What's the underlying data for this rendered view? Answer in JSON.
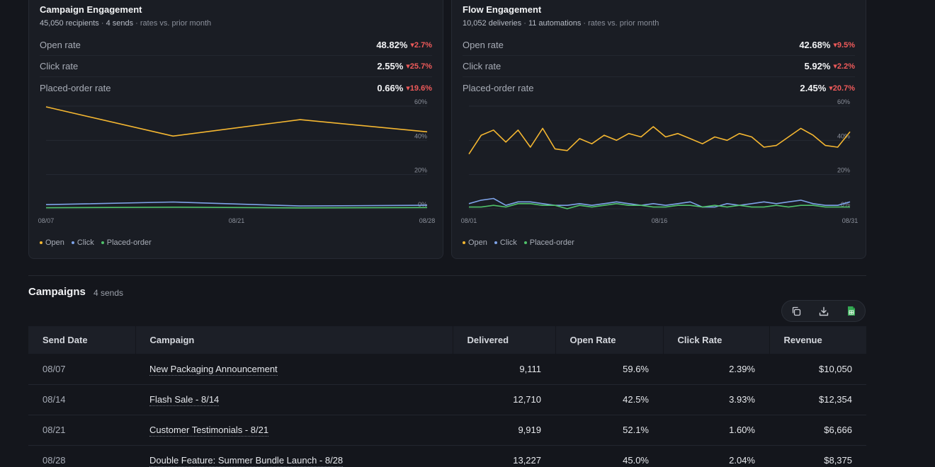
{
  "campaign_card": {
    "title": "Campaign Engagement",
    "recipients": "45,050 recipients",
    "sends": "4 sends",
    "note": "rates vs. prior month",
    "metrics": [
      {
        "label": "Open rate",
        "value": "48.82%",
        "delta": "▾2.7%"
      },
      {
        "label": "Click rate",
        "value": "2.55%",
        "delta": "▾25.7%"
      },
      {
        "label": "Placed-order rate",
        "value": "0.66%",
        "delta": "▾19.6%"
      }
    ]
  },
  "flow_card": {
    "title": "Flow Engagement",
    "deliveries": "10,052 deliveries",
    "automations": "11 automations",
    "note": "rates vs. prior month",
    "metrics": [
      {
        "label": "Open rate",
        "value": "42.68%",
        "delta": "▾9.5%"
      },
      {
        "label": "Click rate",
        "value": "5.92%",
        "delta": "▾2.2%"
      },
      {
        "label": "Placed-order rate",
        "value": "2.45%",
        "delta": "▾20.7%"
      }
    ]
  },
  "legend": {
    "open": "Open",
    "click": "Click",
    "placed": "Placed-order"
  },
  "colors": {
    "open": "#f5b731",
    "click": "#7ea3e8",
    "placed": "#4fc26a",
    "negative": "#ef5a5a"
  },
  "chart_data": [
    {
      "type": "line",
      "x_ticks": [
        "08/07",
        "08/21",
        "08/28"
      ],
      "y_ticks": [
        "60%",
        "40%",
        "20%",
        "0%"
      ],
      "ylim": [
        0,
        60
      ],
      "series": [
        {
          "name": "Open",
          "values": [
            59.6,
            42.5,
            52.1,
            45.0
          ]
        },
        {
          "name": "Click",
          "values": [
            2.39,
            3.93,
            1.6,
            2.04
          ]
        },
        {
          "name": "Placed-order",
          "values": [
            0.6,
            0.9,
            0.5,
            0.7
          ]
        }
      ]
    },
    {
      "type": "line",
      "x_ticks": [
        "08/01",
        "08/16",
        "08/31"
      ],
      "y_ticks": [
        "60%",
        "40%",
        "20%",
        "0%"
      ],
      "ylim": [
        0,
        60
      ],
      "series": [
        {
          "name": "Open",
          "values": [
            32,
            43,
            46,
            39,
            46,
            36,
            47,
            35,
            34,
            41,
            38,
            43,
            40,
            44,
            42,
            48,
            42,
            44,
            41,
            38,
            42,
            40,
            44,
            42,
            36,
            37,
            42,
            47,
            43,
            37,
            36,
            45
          ]
        },
        {
          "name": "Click",
          "values": [
            3,
            5,
            6,
            2,
            4,
            4,
            3,
            2,
            2,
            3,
            2,
            3,
            4,
            3,
            2,
            3,
            2,
            3,
            4,
            1,
            1,
            3,
            2,
            3,
            4,
            3,
            4,
            5,
            3,
            2,
            2,
            4
          ]
        },
        {
          "name": "Placed-order",
          "values": [
            1,
            1,
            2,
            1,
            3,
            3,
            2,
            2,
            0,
            2,
            1,
            2,
            3,
            2,
            2,
            1,
            1,
            2,
            2,
            1,
            2,
            1,
            2,
            1,
            1,
            2,
            1,
            2,
            2,
            1,
            1,
            1
          ]
        }
      ]
    }
  ],
  "campaigns": {
    "title": "Campaigns",
    "count": "4 sends",
    "toolbar_icons": [
      "copy-icon",
      "download-icon",
      "spreadsheet-icon"
    ],
    "columns": [
      "Send Date",
      "Campaign",
      "Delivered",
      "Open Rate",
      "Click Rate",
      "Revenue"
    ],
    "rows": [
      {
        "date": "08/07",
        "campaign": "New Packaging Announcement",
        "delivered": "9,111",
        "open_rate": "59.6%",
        "click_rate": "2.39%",
        "revenue": "$10,050"
      },
      {
        "date": "08/14",
        "campaign": "Flash Sale - 8/14",
        "delivered": "12,710",
        "open_rate": "42.5%",
        "click_rate": "3.93%",
        "revenue": "$12,354"
      },
      {
        "date": "08/21",
        "campaign": "Customer Testimonials - 8/21",
        "delivered": "9,919",
        "open_rate": "52.1%",
        "click_rate": "1.60%",
        "revenue": "$6,666"
      },
      {
        "date": "08/28",
        "campaign": "Double Feature: Summer Bundle Launch - 8/28",
        "delivered": "13,227",
        "open_rate": "45.0%",
        "click_rate": "2.04%",
        "revenue": "$8,375"
      }
    ]
  }
}
